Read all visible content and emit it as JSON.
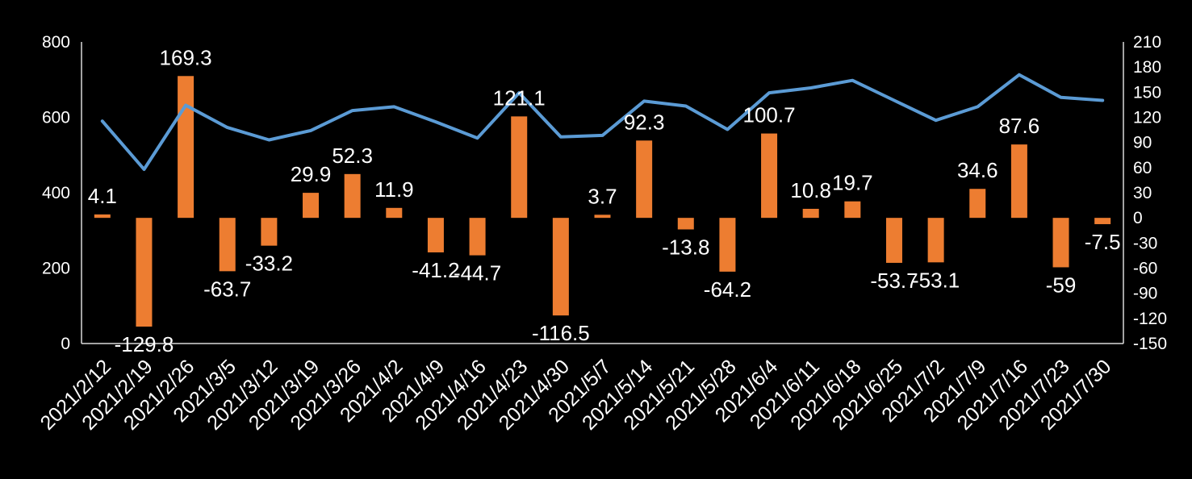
{
  "chart_data": {
    "type": "bar+line",
    "categories": [
      "2021/2/12",
      "2021/2/19",
      "2021/2/26",
      "2021/3/5",
      "2021/3/12",
      "2021/3/19",
      "2021/3/26",
      "2021/4/2",
      "2021/4/9",
      "2021/4/16",
      "2021/4/23",
      "2021/4/30",
      "2021/5/7",
      "2021/5/14",
      "2021/5/21",
      "2021/5/28",
      "2021/6/4",
      "2021/6/11",
      "2021/6/18",
      "2021/6/25",
      "2021/7/2",
      "2021/7/9",
      "2021/7/16",
      "2021/7/23",
      "2021/7/30"
    ],
    "bar_series": {
      "axis": "right",
      "color": "#ED7D31",
      "values": [
        4.1,
        -129.8,
        169.3,
        -63.7,
        -33.2,
        29.9,
        52.3,
        11.9,
        -41.2,
        -44.7,
        121.1,
        -116.5,
        3.7,
        92.3,
        -13.8,
        -64.2,
        100.7,
        10.8,
        19.7,
        -53.7,
        -53.1,
        34.6,
        87.6,
        -59,
        -7.5
      ],
      "labels": [
        "4.1",
        "-129.8",
        "169.3",
        "-63.7",
        "-33.2",
        "29.9",
        "52.3",
        "11.9",
        "-41.2",
        "-44.7",
        "121.1",
        "-116.5",
        "3.7",
        "92.3",
        "-13.8",
        "-64.2",
        "100.7",
        "10.8",
        "19.7",
        "-53.7",
        "-53.1",
        "34.6",
        "87.6",
        "-59",
        "-7.5"
      ]
    },
    "line_series": {
      "axis": "left",
      "color": "#5B9BD5",
      "values": [
        590,
        462,
        632,
        573,
        540,
        565,
        618,
        628,
        588,
        545,
        665,
        548,
        552,
        643,
        630,
        568,
        665,
        678,
        698,
        645,
        592,
        628,
        713,
        653,
        645
      ]
    },
    "left_axis": {
      "ylim": [
        0,
        800
      ],
      "ticks": [
        "0",
        "200",
        "400",
        "600",
        "800"
      ]
    },
    "right_axis": {
      "ylim": [
        -150,
        210
      ],
      "ticks": [
        "-150",
        "-120",
        "-90",
        "-60",
        "-30",
        "0",
        "30",
        "60",
        "90",
        "120",
        "150",
        "180",
        "210"
      ]
    },
    "title": "",
    "xlabel": "",
    "ylabel": "",
    "legend": "none",
    "grid": false
  }
}
